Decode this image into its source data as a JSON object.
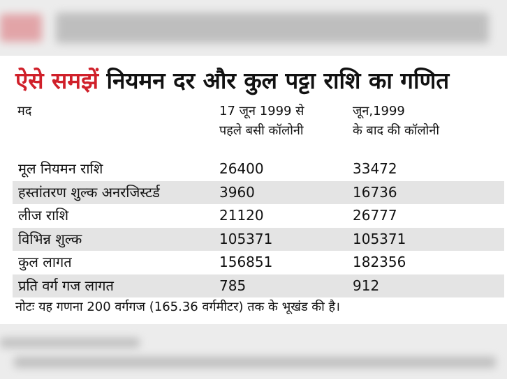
{
  "title": {
    "highlight": "ऐसे समझें",
    "text": "नियमन दर और कुल पट्टा राशि का गणित"
  },
  "table": {
    "header": [
      "मद",
      [
        "17 जून 1999 से",
        "पहले बसी कॉलोनी"
      ],
      [
        "जून,1999",
        "के बाद की कॉलोनी"
      ]
    ],
    "rows": [
      [
        "मूल नियमन राशि",
        26400,
        33472
      ],
      [
        "हस्तांतरण शुल्क अनरजिस्टर्ड",
        3960,
        16736
      ],
      [
        "लीज राशि",
        21120,
        26777
      ],
      [
        "विभिन्न शुल्क",
        105371,
        105371
      ],
      [
        "कुल लागत",
        156851,
        182356
      ],
      [
        "प्रति वर्ग गज लागत",
        785,
        912
      ]
    ]
  },
  "note": "नोटः यह गणना 200 वर्गगज (165.36 वर्गमीटर) तक के भूखंड की है।"
}
